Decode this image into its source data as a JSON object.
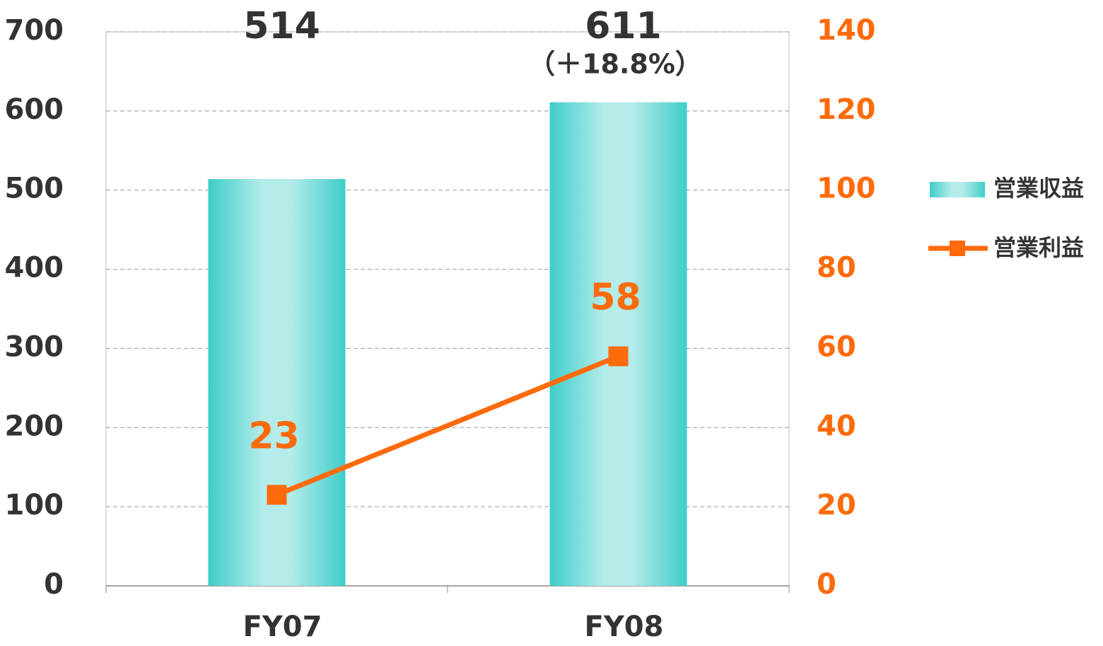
{
  "chart_data": {
    "type": "bar_line",
    "categories": [
      "FY07",
      "FY08"
    ],
    "series": [
      {
        "name": "営業収益",
        "type": "bar",
        "color": "#3ecdc9",
        "values": [
          514,
          611
        ]
      },
      {
        "name": "営業利益",
        "type": "line",
        "color": "#ff6a0a",
        "axis": "y2",
        "values": [
          23,
          58
        ]
      }
    ],
    "annotation": "（＋18.8%）",
    "ylim": [
      0,
      700
    ],
    "yticks": [
      0,
      100,
      200,
      300,
      400,
      500,
      600,
      700
    ],
    "y2lim": [
      0,
      140
    ],
    "y2ticks": [
      0,
      20,
      40,
      60,
      80,
      100,
      120,
      140
    ],
    "grid": true,
    "legend": "right"
  }
}
